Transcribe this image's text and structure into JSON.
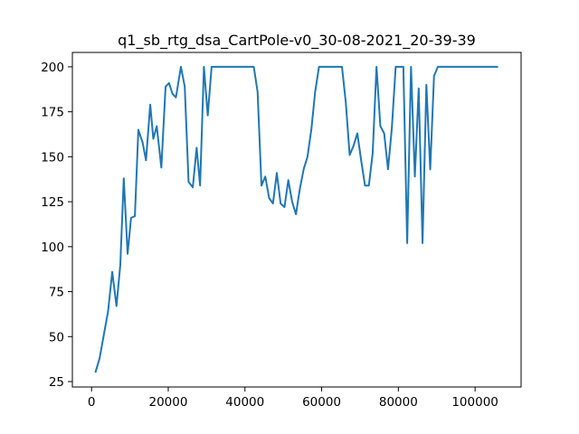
{
  "chart_data": {
    "type": "line",
    "title": "q1_sb_rtg_dsa_CartPole-v0_30-08-2021_20-39-39",
    "xlabel": "",
    "ylabel": "",
    "xlim": [
      -5000,
      112000
    ],
    "ylim": [
      22,
      208
    ],
    "xticks": [
      0,
      20000,
      40000,
      60000,
      80000,
      100000
    ],
    "xtick_labels": [
      "0",
      "20000",
      "40000",
      "60000",
      "80000",
      "100000"
    ],
    "yticks": [
      25,
      50,
      75,
      100,
      125,
      150,
      175,
      200
    ],
    "ytick_labels": [
      "25",
      "50",
      "75",
      "100",
      "125",
      "150",
      "175",
      "200"
    ],
    "grid": false,
    "legend": "none",
    "series": [
      {
        "color": "#1f77b4",
        "x": [
          1000,
          2100,
          3200,
          4300,
          5400,
          6500,
          7500,
          8400,
          9400,
          10300,
          11300,
          12200,
          13300,
          14200,
          15300,
          16100,
          17000,
          18200,
          19300,
          20200,
          21100,
          22000,
          23300,
          24300,
          25300,
          26400,
          27400,
          28300,
          29300,
          30300,
          31300,
          32300,
          33300,
          34300,
          35300,
          36300,
          37300,
          38300,
          39300,
          40300,
          41300,
          42300,
          43300,
          44300,
          45300,
          46300,
          47300,
          48300,
          49300,
          50300,
          51300,
          52300,
          53300,
          54300,
          55300,
          56300,
          57300,
          58300,
          59300,
          60300,
          61300,
          62300,
          63300,
          64300,
          65300,
          66300,
          67300,
          68300,
          69300,
          70300,
          71300,
          72300,
          73300,
          74300,
          75300,
          76300,
          77300,
          78300,
          79300,
          80300,
          81300,
          82300,
          83300,
          84300,
          85300,
          86300,
          87300,
          88300,
          89300,
          90300,
          91300,
          92300,
          93300,
          94300,
          95300,
          96300,
          97300,
          98300,
          99300,
          100300,
          101300,
          102300,
          103300,
          104300,
          105300,
          106000
        ],
        "y": [
          30,
          38,
          51,
          64,
          86,
          67,
          90,
          138,
          96,
          116,
          117,
          165,
          158,
          148,
          179,
          160,
          167,
          144,
          189,
          191,
          185,
          183,
          200,
          189,
          136,
          133,
          155,
          134,
          200,
          173,
          200,
          200,
          200,
          200,
          200,
          200,
          200,
          200,
          200,
          200,
          200,
          200,
          186,
          134,
          139,
          127,
          124,
          141,
          124,
          122,
          137,
          125,
          118,
          132,
          143,
          150,
          165,
          186,
          200,
          200,
          200,
          200,
          200,
          200,
          200,
          180,
          151,
          156,
          163,
          148,
          134,
          134,
          152,
          200,
          167,
          163,
          143,
          166,
          200,
          200,
          200,
          102,
          200,
          139,
          188,
          102,
          190,
          143,
          195,
          200,
          200,
          200,
          200,
          200,
          200,
          200,
          200,
          200,
          200,
          200,
          200,
          200,
          200,
          200,
          200,
          200
        ]
      }
    ]
  }
}
